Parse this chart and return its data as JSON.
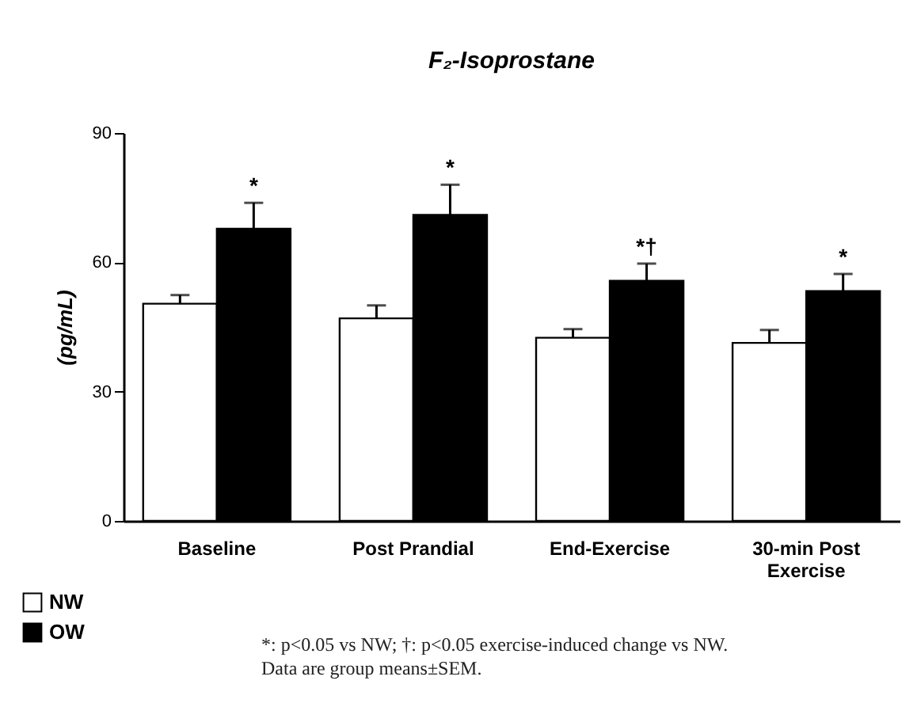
{
  "chart_data": {
    "type": "bar",
    "title": "F₂-Isoprostane",
    "ylabel": "(pg/mL)",
    "categories": [
      "Baseline",
      "Post Prandial",
      "End-Exercise",
      "30-min Post Exercise"
    ],
    "series": [
      {
        "name": "NW",
        "color": "#ffffff",
        "values": [
          50.4,
          47,
          42.5,
          41.3
        ],
        "errors": [
          2,
          3,
          2,
          3
        ]
      },
      {
        "name": "OW",
        "color": "#000000",
        "values": [
          67.8,
          71,
          55.7,
          53.3
        ],
        "errors": [
          6,
          7,
          4,
          4
        ],
        "value_labels": [
          "*",
          "*",
          "*†",
          "*"
        ]
      }
    ],
    "ylim": [
      0,
      90
    ],
    "yticks": [
      0,
      30,
      60,
      90
    ],
    "legend": "bottom left",
    "annotations": [
      "*: p<0.05 vs NW; †: p<0.05 exercise-induced change vs NW.",
      "Data are group means±SEM."
    ]
  }
}
